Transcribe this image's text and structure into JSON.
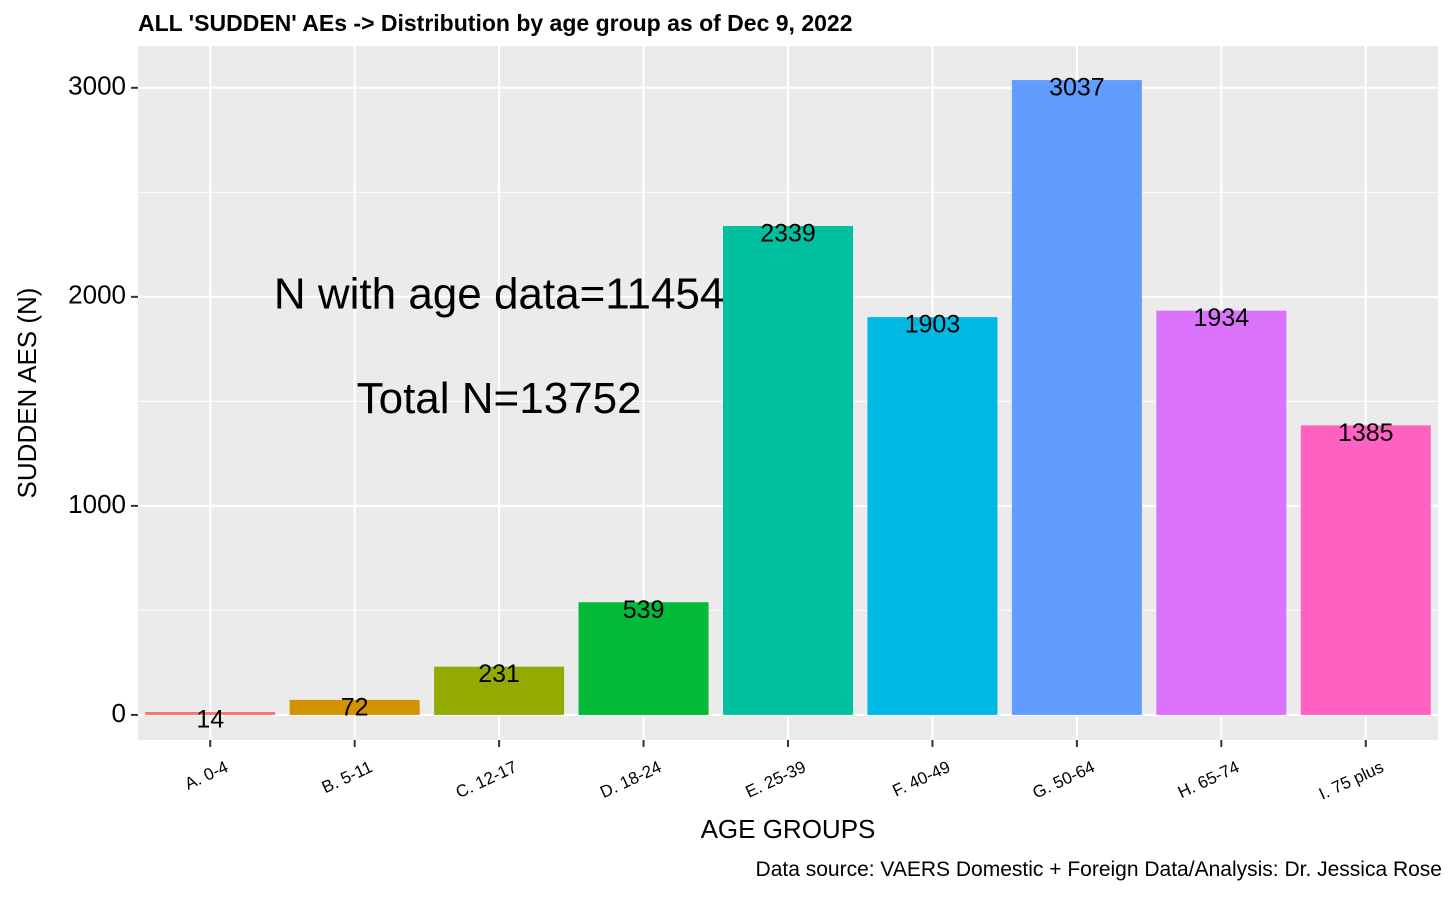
{
  "chart_data": {
    "type": "bar",
    "title": "ALL 'SUDDEN' AEs -> Distribution by age group as of Dec 9, 2022",
    "xlabel": "AGE GROUPS",
    "ylabel": "SUDDEN AES (N)",
    "ylim": [
      -120,
      3200
    ],
    "yticks": [
      0,
      1000,
      2000,
      3000
    ],
    "yticklabels": [
      "0",
      "1000",
      "2000",
      "3000"
    ],
    "grid": true,
    "legend": "none",
    "categories": [
      "A. 0-4",
      "B. 5-11",
      "C. 12-17",
      "D. 18-24",
      "E. 25-39",
      "F. 40-49",
      "G. 50-64",
      "H. 65-74",
      "I. 75 plus"
    ],
    "values": [
      14,
      72,
      231,
      539,
      2339,
      1903,
      3037,
      1934,
      1385
    ],
    "data_labels": [
      "14",
      "72",
      "231",
      "539",
      "2339",
      "1903",
      "3037",
      "1934",
      "1385"
    ],
    "colors": [
      "#F8766D",
      "#D39200",
      "#93AA00",
      "#00BA38",
      "#00C19F",
      "#00B9E3",
      "#619CFF",
      "#DB72FB",
      "#FF61C3"
    ],
    "annotations": [
      {
        "text": "N with age data=11454",
        "x": "C. 12-17",
        "y": 2000
      },
      {
        "text": "Total N=13752",
        "x": "C. 12-17",
        "y": 1500
      }
    ],
    "caption": "Data source: VAERS Domestic + Foreign Data/Analysis: Dr. Jessica Rose"
  }
}
